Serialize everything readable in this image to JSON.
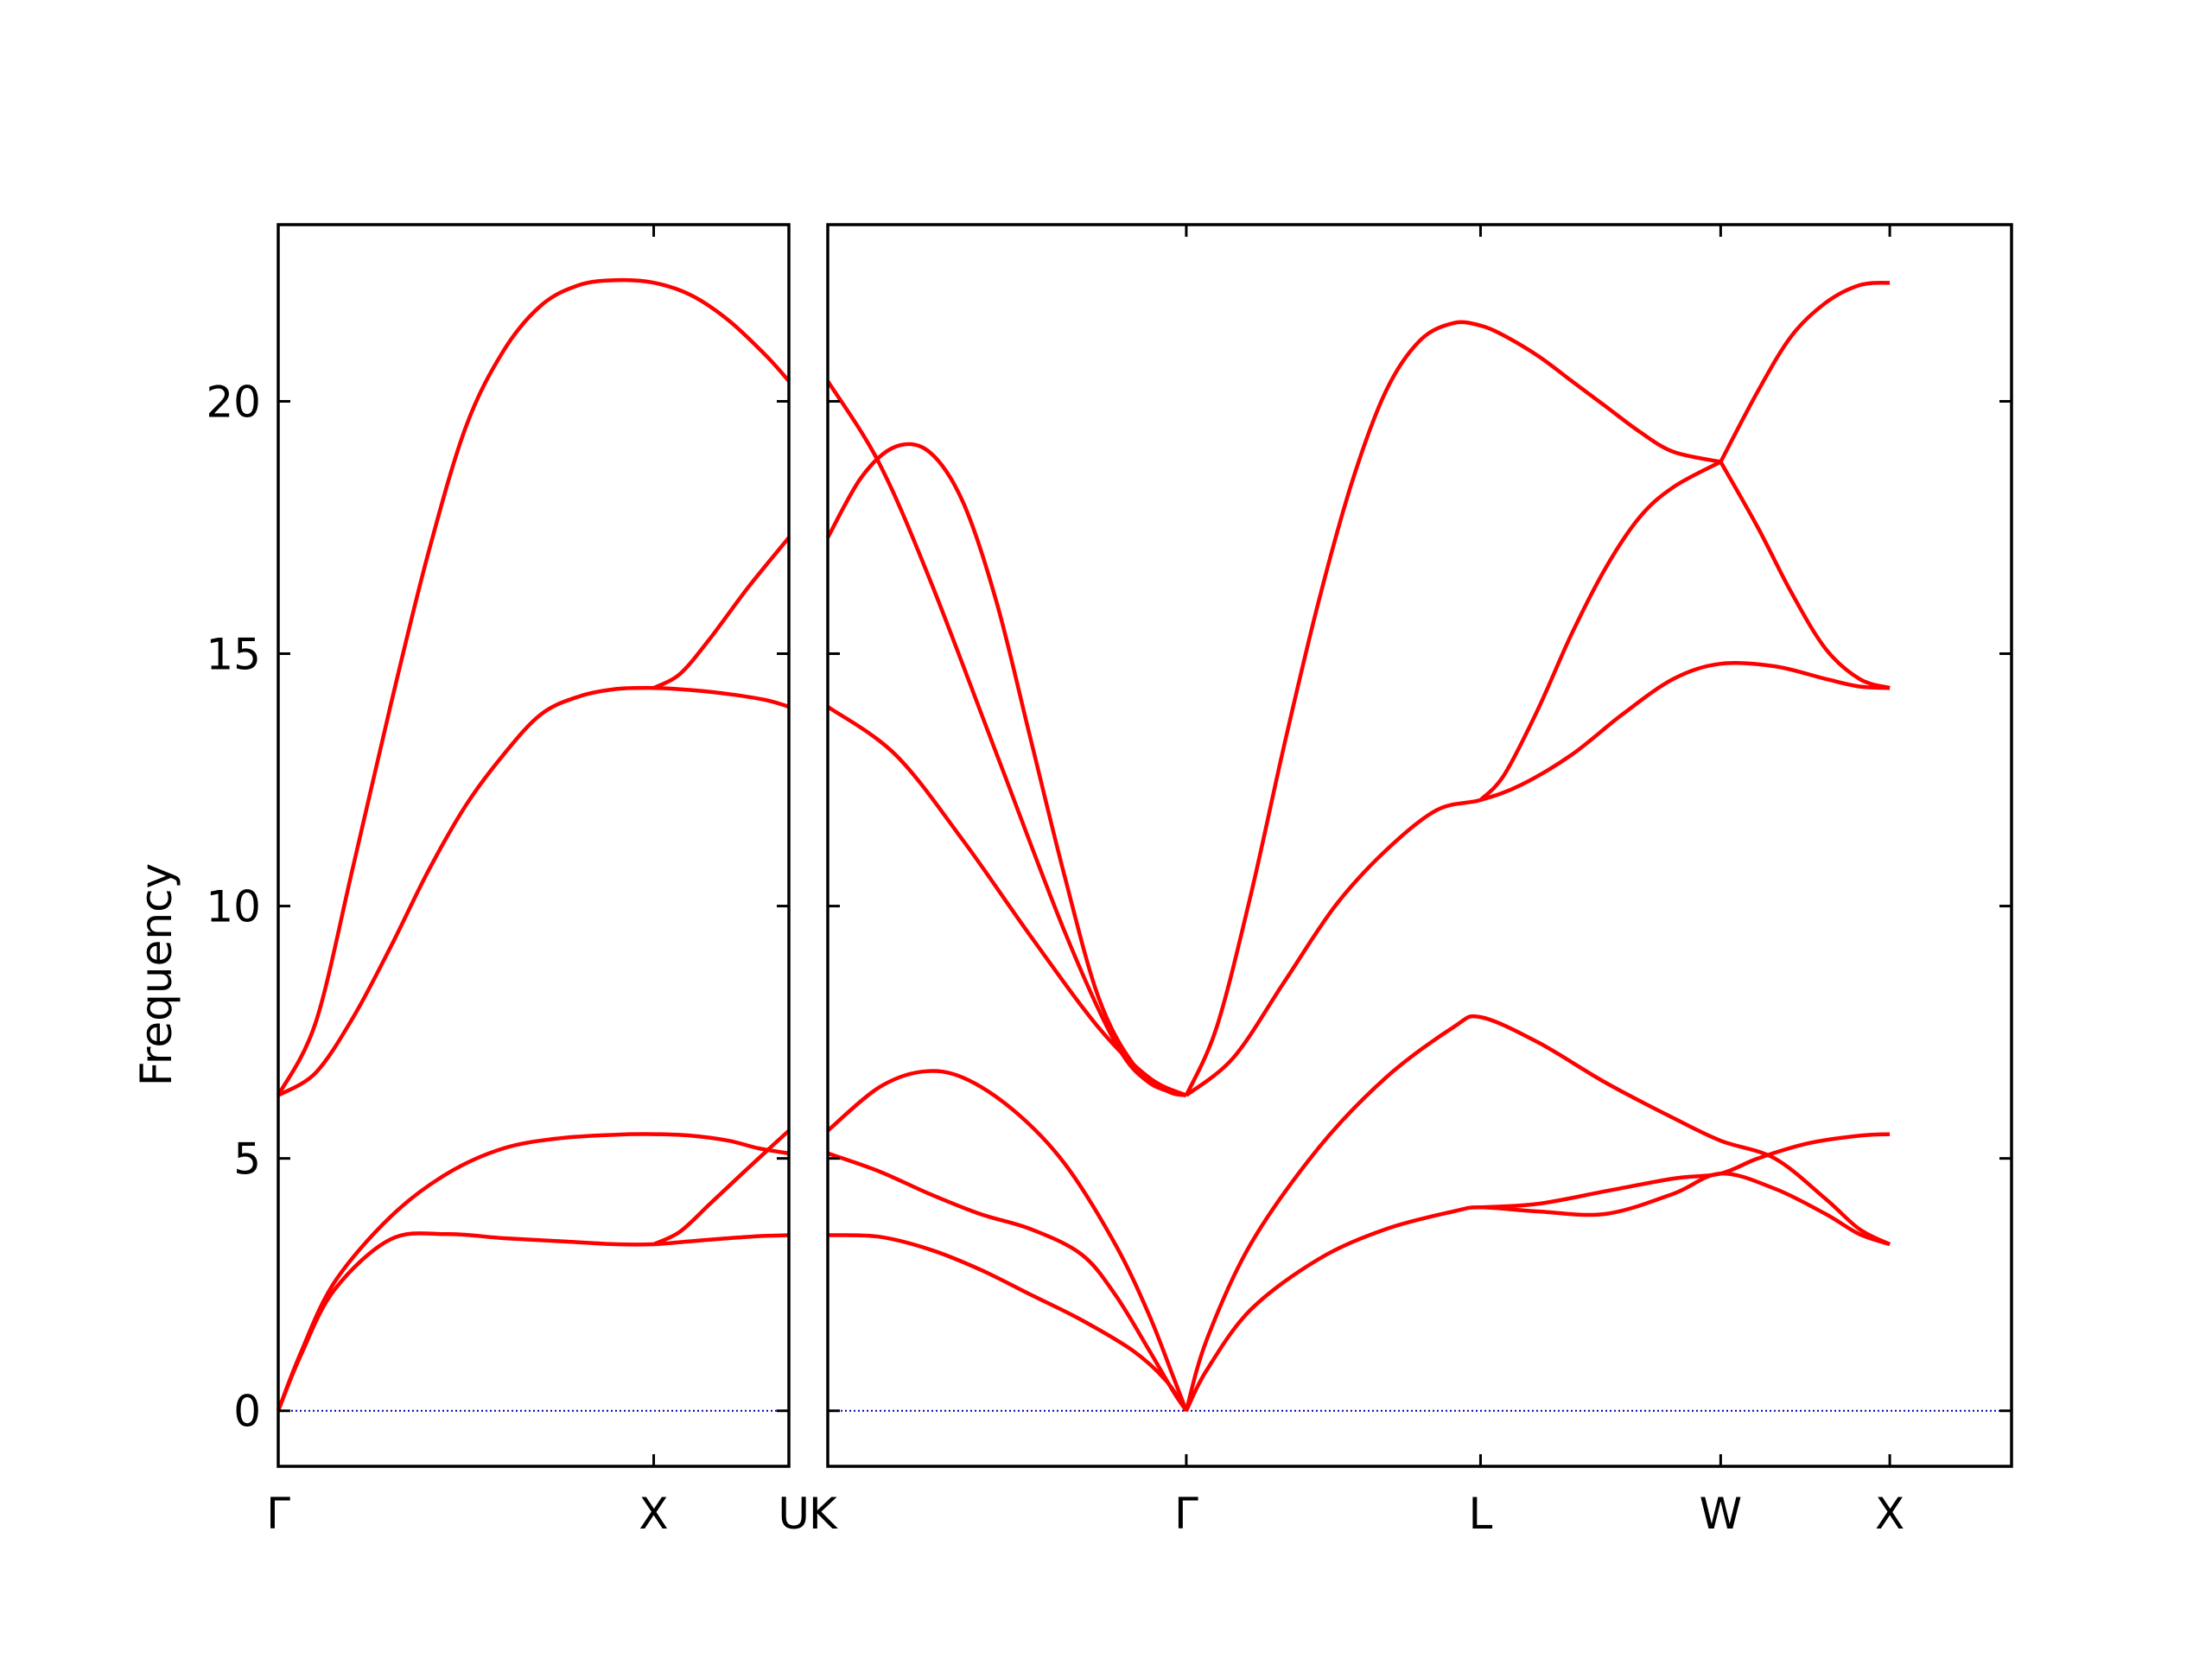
{
  "chart_data": {
    "type": "line",
    "ylabel": "Frequency",
    "ylim": [
      -1.1,
      23.5
    ],
    "yticks": [
      0,
      5,
      10,
      15,
      20
    ],
    "grid": false,
    "line_color": "#ff0000",
    "zero_line_color": "#0000aa",
    "panels": [
      {
        "xlim": [
          0,
          1.36
        ],
        "xticks": [
          {
            "x": 0,
            "label": "Γ"
          },
          {
            "x": 1.0,
            "label": "X"
          },
          {
            "x": 1.36,
            "label": "U"
          }
        ],
        "series": [
          {
            "x": [
              0,
              0.06,
              0.15,
              0.3,
              0.45,
              0.6,
              0.75,
              0.9,
              1.0,
              1.1,
              1.2,
              1.28,
              1.36
            ],
            "y": [
              0,
              1.1,
              2.4,
              3.4,
              3.5,
              3.42,
              3.36,
              3.3,
              3.3,
              3.36,
              3.42,
              3.46,
              3.48
            ]
          },
          {
            "x": [
              0,
              0.06,
              0.15,
              0.3,
              0.45,
              0.6,
              0.75,
              0.9,
              1.0,
              1.1,
              1.2,
              1.28,
              1.36
            ],
            "y": [
              0,
              1.15,
              2.55,
              3.85,
              4.7,
              5.2,
              5.4,
              5.47,
              5.48,
              5.45,
              5.35,
              5.2,
              5.1
            ]
          },
          {
            "x": [
              1.0,
              1.07,
              1.15,
              1.25,
              1.36
            ],
            "y": [
              3.3,
              3.55,
              4.1,
              4.8,
              5.55
            ]
          },
          {
            "x": [
              0,
              0.1,
              0.2,
              0.3,
              0.4,
              0.5,
              0.6,
              0.7,
              0.8,
              0.9,
              1.0,
              1.1,
              1.2,
              1.3,
              1.36
            ],
            "y": [
              6.25,
              6.7,
              7.8,
              9.2,
              10.7,
              12.0,
              13.0,
              13.8,
              14.15,
              14.3,
              14.32,
              14.28,
              14.2,
              14.08,
              13.95
            ]
          },
          {
            "x": [
              0,
              0.1,
              0.2,
              0.3,
              0.4,
              0.5,
              0.6,
              0.7,
              0.8,
              0.9,
              1.0,
              1.1,
              1.2,
              1.3,
              1.36
            ],
            "y": [
              6.25,
              7.7,
              10.8,
              14.0,
              17.0,
              19.5,
              21.0,
              21.9,
              22.3,
              22.4,
              22.35,
              22.1,
              21.6,
              20.9,
              20.4
            ]
          },
          {
            "x": [
              1.0,
              1.07,
              1.15,
              1.25,
              1.36
            ],
            "y": [
              14.32,
              14.6,
              15.3,
              16.3,
              17.3
            ]
          }
        ]
      },
      {
        "xlim": [
          0,
          3.5
        ],
        "xticks": [
          {
            "x": 0,
            "label": "K"
          },
          {
            "x": 1.06,
            "label": "Γ"
          },
          {
            "x": 1.93,
            "label": "L"
          },
          {
            "x": 2.64,
            "label": "W"
          },
          {
            "x": 3.14,
            "label": "X"
          }
        ],
        "series": [
          {
            "x": [
              0,
              0.15,
              0.3,
              0.45,
              0.6,
              0.75,
              0.9,
              1.0,
              1.06
            ],
            "y": [
              3.48,
              3.45,
              3.2,
              2.8,
              2.3,
              1.8,
              1.2,
              0.6,
              0
            ]
          },
          {
            "x": [
              0,
              0.15,
              0.3,
              0.45,
              0.6,
              0.75,
              0.85,
              0.95,
              1.02,
              1.06
            ],
            "y": [
              5.1,
              4.75,
              4.3,
              3.9,
              3.6,
              3.1,
              2.3,
              1.2,
              0.4,
              0
            ]
          },
          {
            "x": [
              0,
              0.15,
              0.28,
              0.4,
              0.55,
              0.7,
              0.85,
              0.95,
              1.02,
              1.06
            ],
            "y": [
              5.55,
              6.4,
              6.72,
              6.6,
              5.95,
              4.9,
              3.3,
              1.9,
              0.7,
              0
            ]
          },
          {
            "x": [
              1.06,
              1.12,
              1.25,
              1.45,
              1.65,
              1.85,
              1.93,
              2.1,
              2.3,
              2.5,
              2.64,
              2.8,
              2.95,
              3.05,
              3.14
            ],
            "y": [
              0,
              0.8,
              2.0,
              3.0,
              3.6,
              3.95,
              4.03,
              3.95,
              3.9,
              4.3,
              4.7,
              4.4,
              3.9,
              3.5,
              3.3
            ]
          },
          {
            "x": [
              1.06,
              1.12,
              1.25,
              1.45,
              1.65,
              1.85,
              1.93,
              2.1,
              2.3,
              2.5,
              2.64,
              2.8,
              2.95,
              3.05,
              3.14
            ],
            "y": [
              0,
              1.4,
              3.3,
              5.2,
              6.6,
              7.6,
              7.8,
              7.3,
              6.5,
              5.8,
              5.35,
              5.0,
              4.2,
              3.6,
              3.3
            ]
          },
          {
            "x": [
              1.93,
              2.1,
              2.3,
              2.5,
              2.64,
              2.75,
              2.9,
              3.05,
              3.14
            ],
            "y": [
              4.03,
              4.1,
              4.35,
              4.6,
              4.7,
              5.0,
              5.3,
              5.45,
              5.48
            ]
          },
          {
            "x": [
              0,
              0.2,
              0.4,
              0.6,
              0.8,
              0.95,
              1.06
            ],
            "y": [
              13.95,
              13.0,
              11.3,
              9.4,
              7.6,
              6.6,
              6.25
            ]
          },
          {
            "x": [
              0,
              0.15,
              0.3,
              0.5,
              0.7,
              0.85,
              0.95,
              1.06
            ],
            "y": [
              20.4,
              18.8,
              16.5,
              13.0,
              9.5,
              7.3,
              6.5,
              6.25
            ]
          },
          {
            "x": [
              0,
              0.1,
              0.2,
              0.3,
              0.4,
              0.5,
              0.6,
              0.7,
              0.8,
              0.9,
              1.0,
              1.06
            ],
            "y": [
              17.3,
              18.5,
              19.1,
              19.0,
              18.0,
              16.0,
              13.3,
              10.6,
              8.2,
              6.9,
              6.35,
              6.25
            ]
          },
          {
            "x": [
              1.06,
              1.2,
              1.35,
              1.5,
              1.65,
              1.8,
              1.93,
              2.05,
              2.2,
              2.35,
              2.5,
              2.64,
              2.8,
              2.95,
              3.05,
              3.14
            ],
            "y": [
              6.25,
              7.0,
              8.5,
              10.0,
              11.1,
              11.9,
              12.1,
              12.4,
              13.0,
              13.8,
              14.5,
              14.8,
              14.75,
              14.5,
              14.35,
              14.32
            ]
          },
          {
            "x": [
              1.93,
              2.0,
              2.1,
              2.2,
              2.3,
              2.4,
              2.5,
              2.64
            ],
            "y": [
              12.1,
              12.6,
              13.9,
              15.4,
              16.7,
              17.7,
              18.3,
              18.8
            ]
          },
          {
            "x": [
              1.06,
              1.15,
              1.25,
              1.35,
              1.45,
              1.55,
              1.65,
              1.75,
              1.85,
              1.93,
              2.0,
              2.1,
              2.2,
              2.3,
              2.4,
              2.5,
              2.64
            ],
            "y": [
              6.25,
              7.6,
              10.2,
              13.2,
              16.0,
              18.4,
              20.2,
              21.2,
              21.55,
              21.5,
              21.3,
              20.9,
              20.4,
              19.9,
              19.4,
              19.0,
              18.8
            ]
          },
          {
            "x": [
              2.64,
              2.75,
              2.85,
              2.95,
              3.05,
              3.14
            ],
            "y": [
              18.8,
              17.5,
              16.2,
              15.1,
              14.5,
              14.32
            ]
          },
          {
            "x": [
              2.64,
              2.75,
              2.85,
              2.95,
              3.05,
              3.14
            ],
            "y": [
              18.8,
              20.2,
              21.3,
              21.95,
              22.3,
              22.35
            ]
          }
        ]
      }
    ]
  }
}
